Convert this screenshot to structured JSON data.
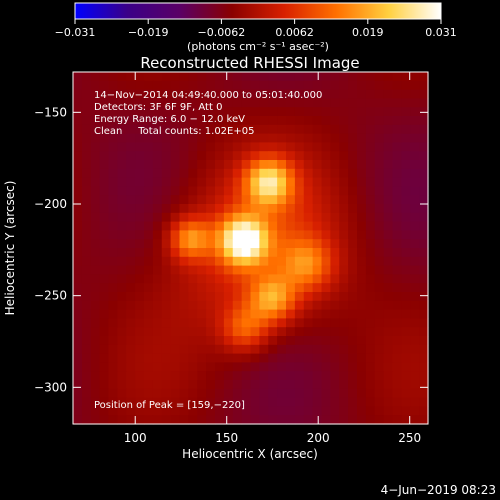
{
  "chart_data": {
    "type": "heatmap",
    "title": "Reconstructed RHESSI Image",
    "xlabel": "Heliocentric X (arcsec)",
    "ylabel": "Heliocentric Y (arcsec)",
    "xlim": [
      66,
      260
    ],
    "ylim": [
      -320,
      -128
    ],
    "x_ticks": [
      100,
      150,
      200,
      250
    ],
    "y_ticks": [
      -150,
      -200,
      -250,
      -300
    ],
    "colorbar": {
      "label": "(photons cm⁻² s⁻¹ asec⁻²)",
      "range": [
        -0.031,
        0.031
      ],
      "ticks": [
        "−0.031",
        "−0.019",
        "−0.0062",
        "0.0062",
        "0.019",
        "0.031"
      ],
      "colors": [
        "#0000ff",
        "#3a0088",
        "#5a0066",
        "#8a0000",
        "#d82000",
        "#ff7000",
        "#ffd040",
        "#ffffff"
      ]
    },
    "annotations": [
      "14−Nov−2014 04:49:40.000 to 05:01:40.000",
      "Detectors: 3F 6F 9F, Att 0",
      "Energy Range: 6.0 − 12.0 keV",
      "Clean     Total counts: 1.02E+05"
    ],
    "peak_text": "Position of Peak = [159,−220]",
    "peak": [
      159,
      -220
    ],
    "sources": [
      {
        "x": 159,
        "y": -220,
        "amp": 0.031,
        "sigma": 9
      },
      {
        "x": 173,
        "y": -188,
        "amp": 0.024,
        "sigma": 9
      },
      {
        "x": 130,
        "y": -219,
        "amp": 0.018,
        "sigma": 8
      },
      {
        "x": 194,
        "y": -233,
        "amp": 0.014,
        "sigma": 10
      },
      {
        "x": 175,
        "y": -252,
        "amp": 0.018,
        "sigma": 9
      },
      {
        "x": 160,
        "y": -268,
        "amp": 0.014,
        "sigma": 9
      },
      {
        "x": 165,
        "y": -225,
        "amp": 0.012,
        "sigma": 34
      }
    ],
    "footer_date": "4−Jun−2019 08:23"
  }
}
